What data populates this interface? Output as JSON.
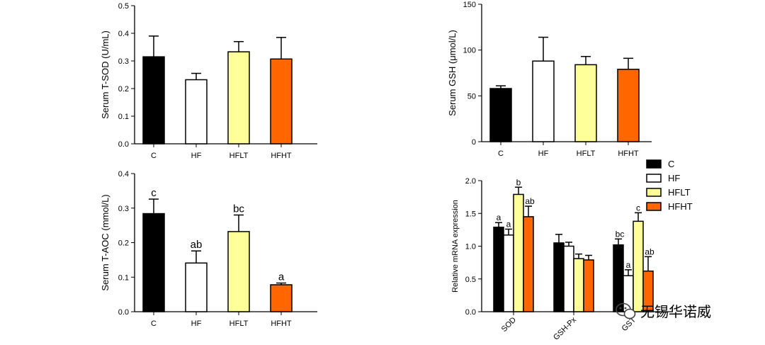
{
  "colors": {
    "C": "#000000",
    "HF": "#ffffff",
    "HFLT": "#ffff99",
    "HFHT": "#ff6600"
  },
  "chart_data": [
    {
      "id": "tsod",
      "type": "bar",
      "ylabel": "Serum T-SOD (U/mL)",
      "categories": [
        "C",
        "HF",
        "HFLT",
        "HFHT"
      ],
      "values": [
        0.315,
        0.232,
        0.333,
        0.307
      ],
      "errors": [
        0.075,
        0.023,
        0.037,
        0.078
      ],
      "ylim": [
        0,
        0.5
      ],
      "yticks": [
        "0.0",
        "0.1",
        "0.2",
        "0.3",
        "0.4",
        "0.5"
      ],
      "annotations": []
    },
    {
      "id": "gsh",
      "type": "bar",
      "ylabel": "Serum GSH (μmol/L)",
      "categories": [
        "C",
        "HF",
        "HFLT",
        "HFHT"
      ],
      "values": [
        58,
        88,
        84,
        79
      ],
      "errors": [
        3,
        26,
        9,
        12
      ],
      "ylim": [
        0,
        150
      ],
      "yticks": [
        "0",
        "50",
        "100",
        "150"
      ],
      "annotations": []
    },
    {
      "id": "taoc",
      "type": "bar",
      "ylabel": "Serum T-AOC (mmol/L)",
      "categories": [
        "C",
        "HF",
        "HFLT",
        "HFHT"
      ],
      "values": [
        0.284,
        0.141,
        0.232,
        0.078
      ],
      "errors": [
        0.042,
        0.035,
        0.048,
        0.005
      ],
      "ylim": [
        0,
        0.4
      ],
      "yticks": [
        "0.0",
        "0.1",
        "0.2",
        "0.3",
        "0.4"
      ],
      "annotations": [
        "c",
        "ab",
        "bc",
        "a"
      ]
    },
    {
      "id": "mrna",
      "type": "bar",
      "ylabel": "Relative mRNA expression",
      "categories": [
        "SOD",
        "GSH-Px",
        "GST"
      ],
      "series": [
        {
          "name": "C",
          "values": [
            1.29,
            1.05,
            1.02
          ],
          "errors": [
            0.07,
            0.13,
            0.09
          ]
        },
        {
          "name": "HF",
          "values": [
            1.17,
            1.0,
            0.55
          ],
          "errors": [
            0.09,
            0.06,
            0.09
          ]
        },
        {
          "name": "HFLT",
          "values": [
            1.79,
            0.81,
            1.38
          ],
          "errors": [
            0.11,
            0.07,
            0.13
          ]
        },
        {
          "name": "HFHT",
          "values": [
            1.45,
            0.79,
            0.62
          ],
          "errors": [
            0.16,
            0.07,
            0.22
          ]
        }
      ],
      "annotations": [
        [
          "a",
          "a",
          "b",
          "ab"
        ],
        [
          "",
          "",
          "",
          ""
        ],
        [
          "bc",
          "a",
          "c",
          "ab"
        ]
      ],
      "ylim": [
        0,
        2.0
      ],
      "yticks": [
        "0.0",
        "0.5",
        "1.0",
        "1.5",
        "2.0"
      ],
      "legend": [
        "C",
        "HF",
        "HFLT",
        "HFHT"
      ],
      "legend_position": "top-right"
    }
  ],
  "watermark": {
    "text": "无锡华诺威",
    "icon": "wechat-icon"
  }
}
